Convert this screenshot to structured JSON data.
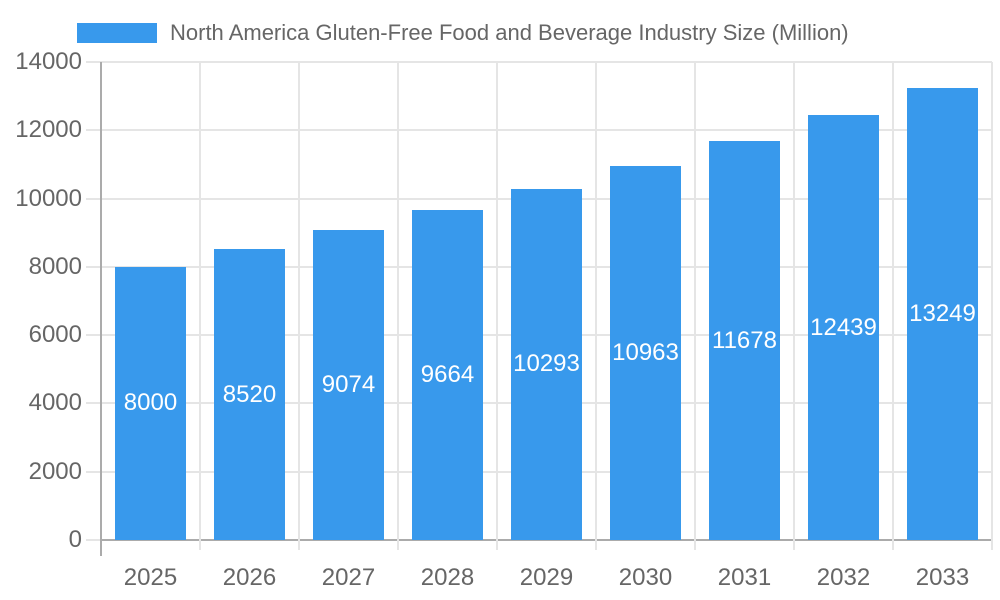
{
  "chart_data": {
    "type": "bar",
    "title": "North America Gluten-Free Food and Beverage Industry Size (Million)",
    "categories": [
      "2025",
      "2026",
      "2027",
      "2028",
      "2029",
      "2030",
      "2031",
      "2032",
      "2033"
    ],
    "series": [
      {
        "name": "North America Gluten-Free Food and Beverage Industry Size (Million)",
        "values": [
          8000,
          8520,
          9074,
          9664,
          10293,
          10963,
          11678,
          12439,
          13249
        ],
        "color": "#3899EC"
      }
    ],
    "bar_value_labels": [
      "8000",
      "8520",
      "9074",
      "9664",
      "10293",
      "10963",
      "11678",
      "12439",
      "13249"
    ],
    "xlabel": "",
    "ylabel": "",
    "ylim": [
      0,
      14000
    ],
    "ytick_step": 2000,
    "yticks": [
      "0",
      "2000",
      "4000",
      "6000",
      "8000",
      "10000",
      "12000",
      "14000"
    ],
    "grid": "on",
    "legend_position": "top",
    "colors": {
      "bar_fill": "#3899EC",
      "bar_label_text": "#ffffff",
      "axis_text": "#666666",
      "gridline": "#e5e5e5",
      "axis_line": "#ababab",
      "background": "#ffffff"
    }
  }
}
